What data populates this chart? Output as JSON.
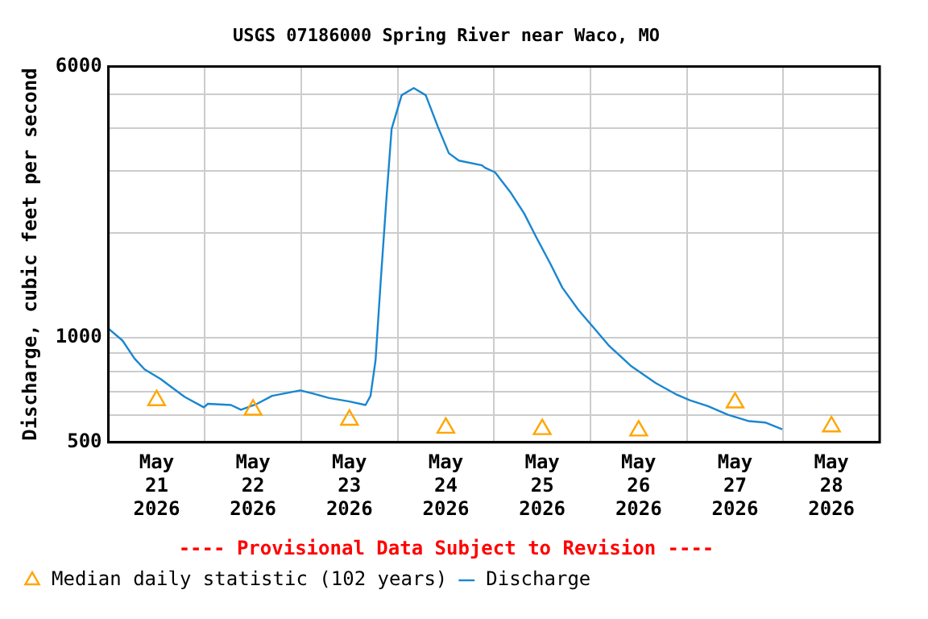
{
  "chart_data": {
    "type": "line",
    "title": "USGS 07186000 Spring River near Waco, MO",
    "ylabel": "Discharge, cubic feet per second",
    "annotations": [
      "---- Provisional Data Subject to Revision ----"
    ],
    "log": "y",
    "grid": true,
    "legend": "bottom",
    "xlim": [
      "2026-05-21T00:00",
      "2026-05-29T00:00"
    ],
    "xticks": [
      {
        "value": "2026-05-21T12:00",
        "label": "May 21 2026"
      },
      {
        "value": "2026-05-22T00:00",
        "label": null
      },
      {
        "value": "2026-05-22T12:00",
        "label": "May 22 2026"
      },
      {
        "value": "2026-05-23T00:00",
        "label": null
      },
      {
        "value": "2026-05-23T12:00",
        "label": "May 23 2026"
      },
      {
        "value": "2026-05-24T00:00",
        "label": null
      },
      {
        "value": "2026-05-24T12:00",
        "label": "May 24 2026"
      },
      {
        "value": "2026-05-25T00:00",
        "label": null
      },
      {
        "value": "2026-05-25T12:00",
        "label": "May 25 2026"
      },
      {
        "value": "2026-05-26T00:00",
        "label": null
      },
      {
        "value": "2026-05-26T12:00",
        "label": "May 26 2026"
      },
      {
        "value": "2026-05-27T00:00",
        "label": null
      },
      {
        "value": "2026-05-27T12:00",
        "label": "May 27 2026"
      },
      {
        "value": "2026-05-28T00:00",
        "label": null
      },
      {
        "value": "2026-05-28T12:00",
        "label": "May 28 2026"
      }
    ],
    "ylim": [
      500,
      6000
    ],
    "yticks": [
      500,
      {
        "value": 600,
        "label": null
      },
      {
        "value": 700,
        "label": null
      },
      {
        "value": 800,
        "label": null
      },
      {
        "value": 900,
        "label": null
      },
      1000,
      {
        "value": 2000,
        "label": null
      },
      {
        "value": 3000,
        "label": null
      },
      {
        "value": 4000,
        "label": null
      },
      {
        "value": 5000,
        "label": null
      },
      6000
    ],
    "series": [
      {
        "name": "Median daily statistic (102 years)",
        "type": "scatter",
        "marker": "triangle",
        "color": "#ffa500",
        "x": [
          "2026-05-21T12:00",
          "2026-05-22T12:00",
          "2026-05-23T12:00",
          "2026-05-24T12:00",
          "2026-05-25T12:00",
          "2026-05-26T12:00",
          "2026-05-27T12:00",
          "2026-05-28T12:00"
        ],
        "values": [
          660,
          620,
          580,
          550,
          545,
          540,
          650,
          555
        ]
      },
      {
        "name": "Discharge",
        "marker": "none",
        "color": "#1a86d0",
        "x": [
          "2026-05-21T00:00",
          "2026-05-21T03:30",
          "2026-05-21T06:30",
          "2026-05-21T09:00",
          "2026-05-21T13:00",
          "2026-05-21T15:00",
          "2026-05-21T19:00",
          "2026-05-21T23:45",
          "2026-05-22T00:45",
          "2026-05-22T06:30",
          "2026-05-22T09:00",
          "2026-05-22T13:00",
          "2026-05-22T16:45",
          "2026-05-22T23:45",
          "2026-05-23T03:00",
          "2026-05-23T07:00",
          "2026-05-23T12:00",
          "2026-05-23T16:00",
          "2026-05-23T17:15",
          "2026-05-23T18:30",
          "2026-05-23T19:45",
          "2026-05-23T21:15",
          "2026-05-23T22:30",
          "2026-05-24T01:00",
          "2026-05-24T04:00",
          "2026-05-24T07:00",
          "2026-05-24T10:00",
          "2026-05-24T12:45",
          "2026-05-24T15:15",
          "2026-05-24T21:00",
          "2026-05-24T21:45",
          "2026-05-25T00:15",
          "2026-05-25T04:00",
          "2026-05-25T07:30",
          "2026-05-25T10:30",
          "2026-05-25T14:00",
          "2026-05-25T17:00",
          "2026-05-25T21:00",
          "2026-05-26T01:00",
          "2026-05-26T04:30",
          "2026-05-26T10:00",
          "2026-05-26T16:15",
          "2026-05-26T21:30",
          "2026-05-27T00:45",
          "2026-05-27T05:15",
          "2026-05-27T10:15",
          "2026-05-27T15:30",
          "2026-05-27T19:30",
          "2026-05-27T23:45"
        ],
        "values": [
          1060,
          980,
          870,
          810,
          760,
          730,
          675,
          630,
          645,
          640,
          620,
          645,
          680,
          705,
          690,
          670,
          655,
          640,
          680,
          860,
          1430,
          2540,
          3970,
          4960,
          5200,
          4960,
          4030,
          3380,
          3220,
          3120,
          3070,
          2980,
          2620,
          2270,
          1940,
          1630,
          1390,
          1200,
          1060,
          950,
          830,
          740,
          685,
          660,
          635,
          600,
          575,
          570,
          545
        ]
      }
    ]
  }
}
